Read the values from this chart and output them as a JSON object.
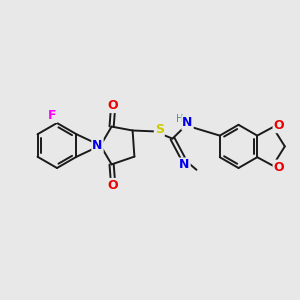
{
  "bg_color": "#e8e8e8",
  "atom_colors": {
    "C": "#1a1a1a",
    "N": "#0000ee",
    "O": "#ee0000",
    "S": "#cccc00",
    "F": "#ff00ff",
    "H": "#4a9090"
  },
  "bond_color": "#1a1a1a",
  "bond_width": 1.4
}
